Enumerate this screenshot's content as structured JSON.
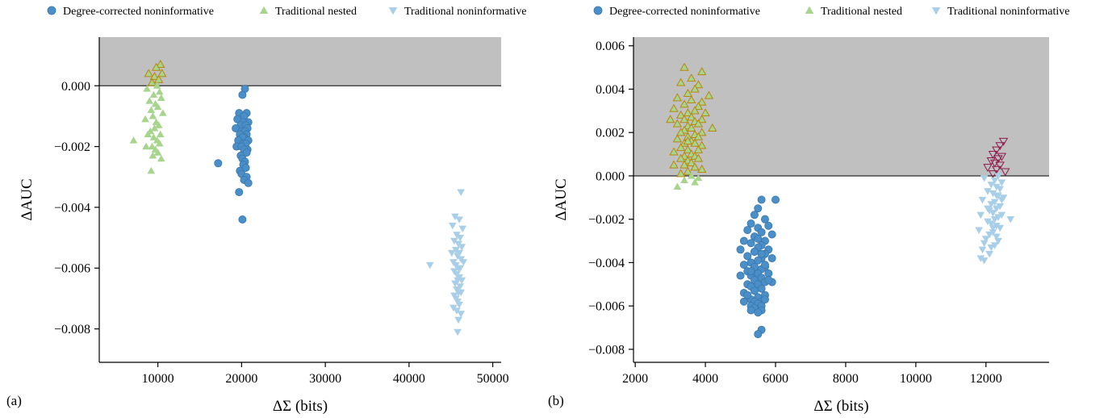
{
  "colors": {
    "degree_corrected": "#4a8fc7",
    "degree_corrected_edge": "#3a77ad",
    "traditional_nested": "#a8d58e",
    "traditional_noninformative": "#a9cfe8",
    "highlight_nested_edge": "#b8860b",
    "highlight_noninf_edge": "#8b1a4a",
    "shade": "#c0c0c0"
  },
  "chart_data": [
    {
      "panel": "(a)",
      "type": "scatter",
      "xlabel": "ΔΣ (bits)",
      "ylabel": "ΔAUC",
      "xlim": [
        3000,
        51000
      ],
      "ylim": [
        -0.0091,
        0.0016
      ],
      "xticks": [
        10000,
        20000,
        30000,
        40000,
        50000
      ],
      "yticks": [
        0.0,
        -0.002,
        -0.004,
        -0.006,
        -0.008
      ],
      "xtick_labels": [
        "10000",
        "20000",
        "30000",
        "40000",
        "50000"
      ],
      "ytick_labels": [
        "0.000",
        "−0.002",
        "−0.004",
        "−0.006",
        "−0.008"
      ],
      "shaded_region": {
        "y_from": 0.0,
        "y_to": 0.0016
      },
      "legend": [
        "Degree-corrected noninformative",
        "Traditional nested",
        "Traditional noninformative"
      ],
      "series": [
        {
          "name": "Degree-corrected noninformative",
          "marker": "circle",
          "x": [
            20400,
            20100,
            19700,
            20600,
            20300,
            19500,
            20800,
            20200,
            19900,
            20500,
            20700,
            19300,
            20000,
            20400,
            20600,
            19800,
            20300,
            20100,
            19600,
            20800,
            20200,
            20500,
            19400,
            20000,
            20700,
            20300,
            20600,
            19900,
            20100,
            20400,
            17200,
            20200,
            20500,
            19800,
            20000,
            20600,
            20300,
            20800,
            19700,
            20100
          ],
          "y": [
            -0.0001,
            -0.0003,
            -0.0009,
            -0.0009,
            -0.001,
            -0.0011,
            -0.0012,
            -0.0012,
            -0.0013,
            -0.0013,
            -0.0014,
            -0.0014,
            -0.0015,
            -0.0015,
            -0.0016,
            -0.0016,
            -0.0017,
            -0.0017,
            -0.0018,
            -0.0018,
            -0.0019,
            -0.0019,
            -0.002,
            -0.002,
            -0.0021,
            -0.0021,
            -0.0022,
            -0.0023,
            -0.0024,
            -0.0025,
            -0.00255,
            -0.0026,
            -0.0027,
            -0.0028,
            -0.0029,
            -0.003,
            -0.0031,
            -0.0032,
            -0.0035,
            -0.0044
          ]
        },
        {
          "name": "Traditional nested",
          "marker": "triangle-up",
          "x": [
            10300,
            9800,
            10500,
            8900,
            9600,
            10100,
            9300,
            9900,
            8700,
            10200,
            9500,
            10400,
            9000,
            9700,
            10000,
            9200,
            10600,
            9400,
            8500,
            9800,
            10100,
            9600,
            9100,
            10300,
            8800,
            9500,
            9900,
            10200,
            7100,
            9300,
            9700,
            10000,
            8600,
            9400,
            10400,
            9200
          ],
          "y": [
            0.0007,
            0.0006,
            0.0004,
            0.0004,
            0.0003,
            0.0002,
            0.0001,
            0.0,
            -0.0001,
            -0.0002,
            -0.0003,
            -0.0004,
            -0.0005,
            -0.0006,
            -0.0007,
            -0.0008,
            -0.0009,
            -0.001,
            -0.0011,
            -0.0012,
            -0.0013,
            -0.0014,
            -0.0015,
            -0.0016,
            -0.0016,
            -0.0017,
            -0.0018,
            -0.0019,
            -0.0018,
            -0.002,
            -0.0021,
            -0.0022,
            -0.002,
            -0.0023,
            -0.0024,
            -0.0028
          ]
        },
        {
          "name": "Traditional noninformative",
          "marker": "triangle-down",
          "x": [
            46200,
            45500,
            46000,
            45200,
            46400,
            45700,
            46100,
            45400,
            45900,
            46300,
            45600,
            45100,
            46000,
            45800,
            46200,
            45300,
            46500,
            45600,
            45900,
            46100,
            45400,
            45700,
            42500,
            46000,
            45800,
            46300,
            45500,
            46100,
            45700,
            45900,
            46200,
            45400,
            45600,
            45800,
            46000,
            45300,
            45700,
            46200,
            45900,
            45800
          ],
          "y": [
            -0.0035,
            -0.0043,
            -0.0044,
            -0.0046,
            -0.0047,
            -0.0049,
            -0.005,
            -0.0051,
            -0.0052,
            -0.0053,
            -0.0054,
            -0.0055,
            -0.0055,
            -0.0056,
            -0.0057,
            -0.0058,
            -0.0058,
            -0.0059,
            -0.006,
            -0.006,
            -0.0061,
            -0.0062,
            -0.0059,
            -0.0063,
            -0.0064,
            -0.0064,
            -0.0065,
            -0.0066,
            -0.0067,
            -0.0068,
            -0.0068,
            -0.0069,
            -0.007,
            -0.0071,
            -0.0072,
            -0.0073,
            -0.0074,
            -0.0075,
            -0.0077,
            -0.0081
          ]
        }
      ]
    },
    {
      "panel": "(b)",
      "type": "scatter",
      "xlabel": "ΔΣ (bits)",
      "ylabel": "ΔAUC",
      "xlim": [
        1950,
        13800
      ],
      "ylim": [
        -0.0086,
        0.0064
      ],
      "xticks": [
        2000,
        4000,
        6000,
        8000,
        10000,
        12000
      ],
      "yticks": [
        0.006,
        0.004,
        0.002,
        0.0,
        -0.002,
        -0.004,
        -0.006,
        -0.008
      ],
      "xtick_labels": [
        "2000",
        "4000",
        "6000",
        "8000",
        "10000",
        "12000"
      ],
      "ytick_labels": [
        "0.006",
        "0.004",
        "0.002",
        "0.000",
        "−0.002",
        "−0.004",
        "−0.006",
        "−0.008"
      ],
      "shaded_region": {
        "y_from": 0.0,
        "y_to": 0.0064
      },
      "legend": [
        "Degree-corrected noninformative",
        "Traditional nested",
        "Traditional noninformative"
      ],
      "series": [
        {
          "name": "Degree-corrected noninformative",
          "marker": "circle",
          "x": [
            5600,
            5500,
            6000,
            5400,
            5700,
            5300,
            5800,
            5500,
            5200,
            5600,
            5900,
            5400,
            5100,
            5700,
            5300,
            5600,
            5500,
            5800,
            5000,
            5400,
            5700,
            5200,
            5600,
            5500,
            5300,
            5900,
            5100,
            5400,
            5700,
            5600,
            5200,
            5500,
            5800,
            5300,
            5000,
            5600,
            5400,
            5700,
            5500,
            5200,
            5900,
            5300,
            5600,
            5400,
            5100,
            5700,
            5500,
            5300,
            5600,
            5400,
            5800,
            5200,
            5500,
            5700,
            5300,
            5600,
            5100,
            5400,
            5600,
            5500,
            5700,
            5300,
            5600,
            5400,
            5500,
            5300,
            5600,
            5500
          ],
          "y": [
            -0.0011,
            -0.0015,
            -0.0011,
            -0.0018,
            -0.002,
            -0.0022,
            -0.0023,
            -0.0024,
            -0.0025,
            -0.0026,
            -0.0027,
            -0.0028,
            -0.003,
            -0.003,
            -0.0031,
            -0.0032,
            -0.0033,
            -0.0034,
            -0.0034,
            -0.0035,
            -0.0036,
            -0.0037,
            -0.0038,
            -0.0039,
            -0.004,
            -0.0038,
            -0.0041,
            -0.0042,
            -0.0042,
            -0.0043,
            -0.0044,
            -0.0045,
            -0.0045,
            -0.0046,
            -0.0046,
            -0.0047,
            -0.0048,
            -0.0049,
            -0.005,
            -0.005,
            -0.0049,
            -0.0051,
            -0.0052,
            -0.0053,
            -0.0054,
            -0.0055,
            -0.0056,
            -0.0057,
            -0.0058,
            -0.0058,
            -0.0048,
            -0.0055,
            -0.0059,
            -0.0057,
            -0.006,
            -0.006,
            -0.0058,
            -0.0061,
            -0.0062,
            -0.0063,
            -0.0041,
            -0.0044,
            -0.0036,
            -0.0035,
            -0.0029,
            -0.0062,
            -0.0071,
            -0.0073
          ]
        },
        {
          "name": "Traditional nested",
          "marker": "triangle-up",
          "x": [
            3400,
            3900,
            3600,
            3300,
            3800,
            3700,
            3500,
            4100,
            3200,
            3600,
            3900,
            3400,
            3800,
            3100,
            3700,
            3500,
            4000,
            3300,
            3600,
            3900,
            3400,
            3700,
            3200,
            3800,
            3500,
            4200,
            3000,
            3600,
            3400,
            3900,
            3300,
            3700,
            3500,
            3800,
            3200,
            3600,
            3400,
            3700,
            3900,
            3300,
            3500,
            3800,
            3100,
            3600,
            3400,
            3700,
            3300,
            3500,
            3800,
            3600,
            3100,
            3400,
            3700,
            3900,
            3500,
            3300,
            3600,
            3800,
            3400,
            3200,
            3700,
            3500
          ],
          "y": [
            0.005,
            0.0048,
            0.0045,
            0.0043,
            0.0042,
            0.004,
            0.0038,
            0.0037,
            0.0036,
            0.0035,
            0.0034,
            0.0033,
            0.0032,
            0.0031,
            0.003,
            0.0029,
            0.0029,
            0.0028,
            0.0027,
            0.0026,
            0.0026,
            0.0025,
            0.0024,
            0.0024,
            0.0023,
            0.0022,
            0.0026,
            0.0022,
            0.0021,
            0.002,
            0.002,
            0.0019,
            0.0018,
            0.0018,
            0.0017,
            0.0016,
            0.0015,
            0.0015,
            0.0014,
            0.0013,
            0.0012,
            0.0012,
            0.0011,
            0.001,
            0.0009,
            0.0009,
            0.0008,
            0.0007,
            0.0008,
            0.0006,
            0.0005,
            0.0005,
            0.0004,
            0.0003,
            0.0002,
            0.0001,
            0.0,
            -0.0001,
            -0.0002,
            -0.0005,
            -0.0003,
            0.0016
          ]
        },
        {
          "name": "Traditional noninformative",
          "marker": "triangle-down",
          "x": [
            12500,
            12400,
            12300,
            12200,
            12450,
            12350,
            12150,
            12250,
            12400,
            12050,
            12300,
            12550,
            12200,
            12350,
            11950,
            12250,
            12450,
            12150,
            12300,
            12400,
            12050,
            12200,
            12350,
            12500,
            11900,
            12250,
            12150,
            12400,
            12300,
            12100,
            12200,
            12450,
            11850,
            12350,
            12250,
            12050,
            12150,
            12300,
            12400,
            11800,
            12200,
            12700,
            12100,
            12300,
            12000,
            12350,
            11950,
            12250,
            12150,
            11900,
            12450,
            12050,
            12200,
            12100,
            11850,
            12300,
            11950
          ],
          "y": [
            0.0016,
            0.0014,
            0.0012,
            0.001,
            0.0009,
            0.0008,
            0.0007,
            0.0006,
            0.0005,
            0.0004,
            0.0003,
            0.0002,
            0.0001,
            0.0,
            -0.0001,
            -0.0002,
            -0.0003,
            -0.0004,
            -0.0005,
            -0.0006,
            -0.0007,
            -0.0008,
            -0.0009,
            -0.001,
            -0.0011,
            -0.0012,
            -0.0013,
            -0.0014,
            -0.0015,
            -0.0016,
            -0.0017,
            -0.0018,
            -0.0018,
            -0.0019,
            -0.002,
            -0.0021,
            -0.0022,
            -0.0023,
            -0.0024,
            -0.0025,
            -0.0026,
            -0.002,
            -0.0027,
            -0.0028,
            -0.0029,
            -0.003,
            -0.0031,
            -0.0032,
            -0.0033,
            -0.0034,
            -0.0011,
            -0.0015,
            -0.0024,
            -0.0036,
            -0.0038,
            -0.0009,
            -0.0039
          ]
        }
      ]
    }
  ]
}
